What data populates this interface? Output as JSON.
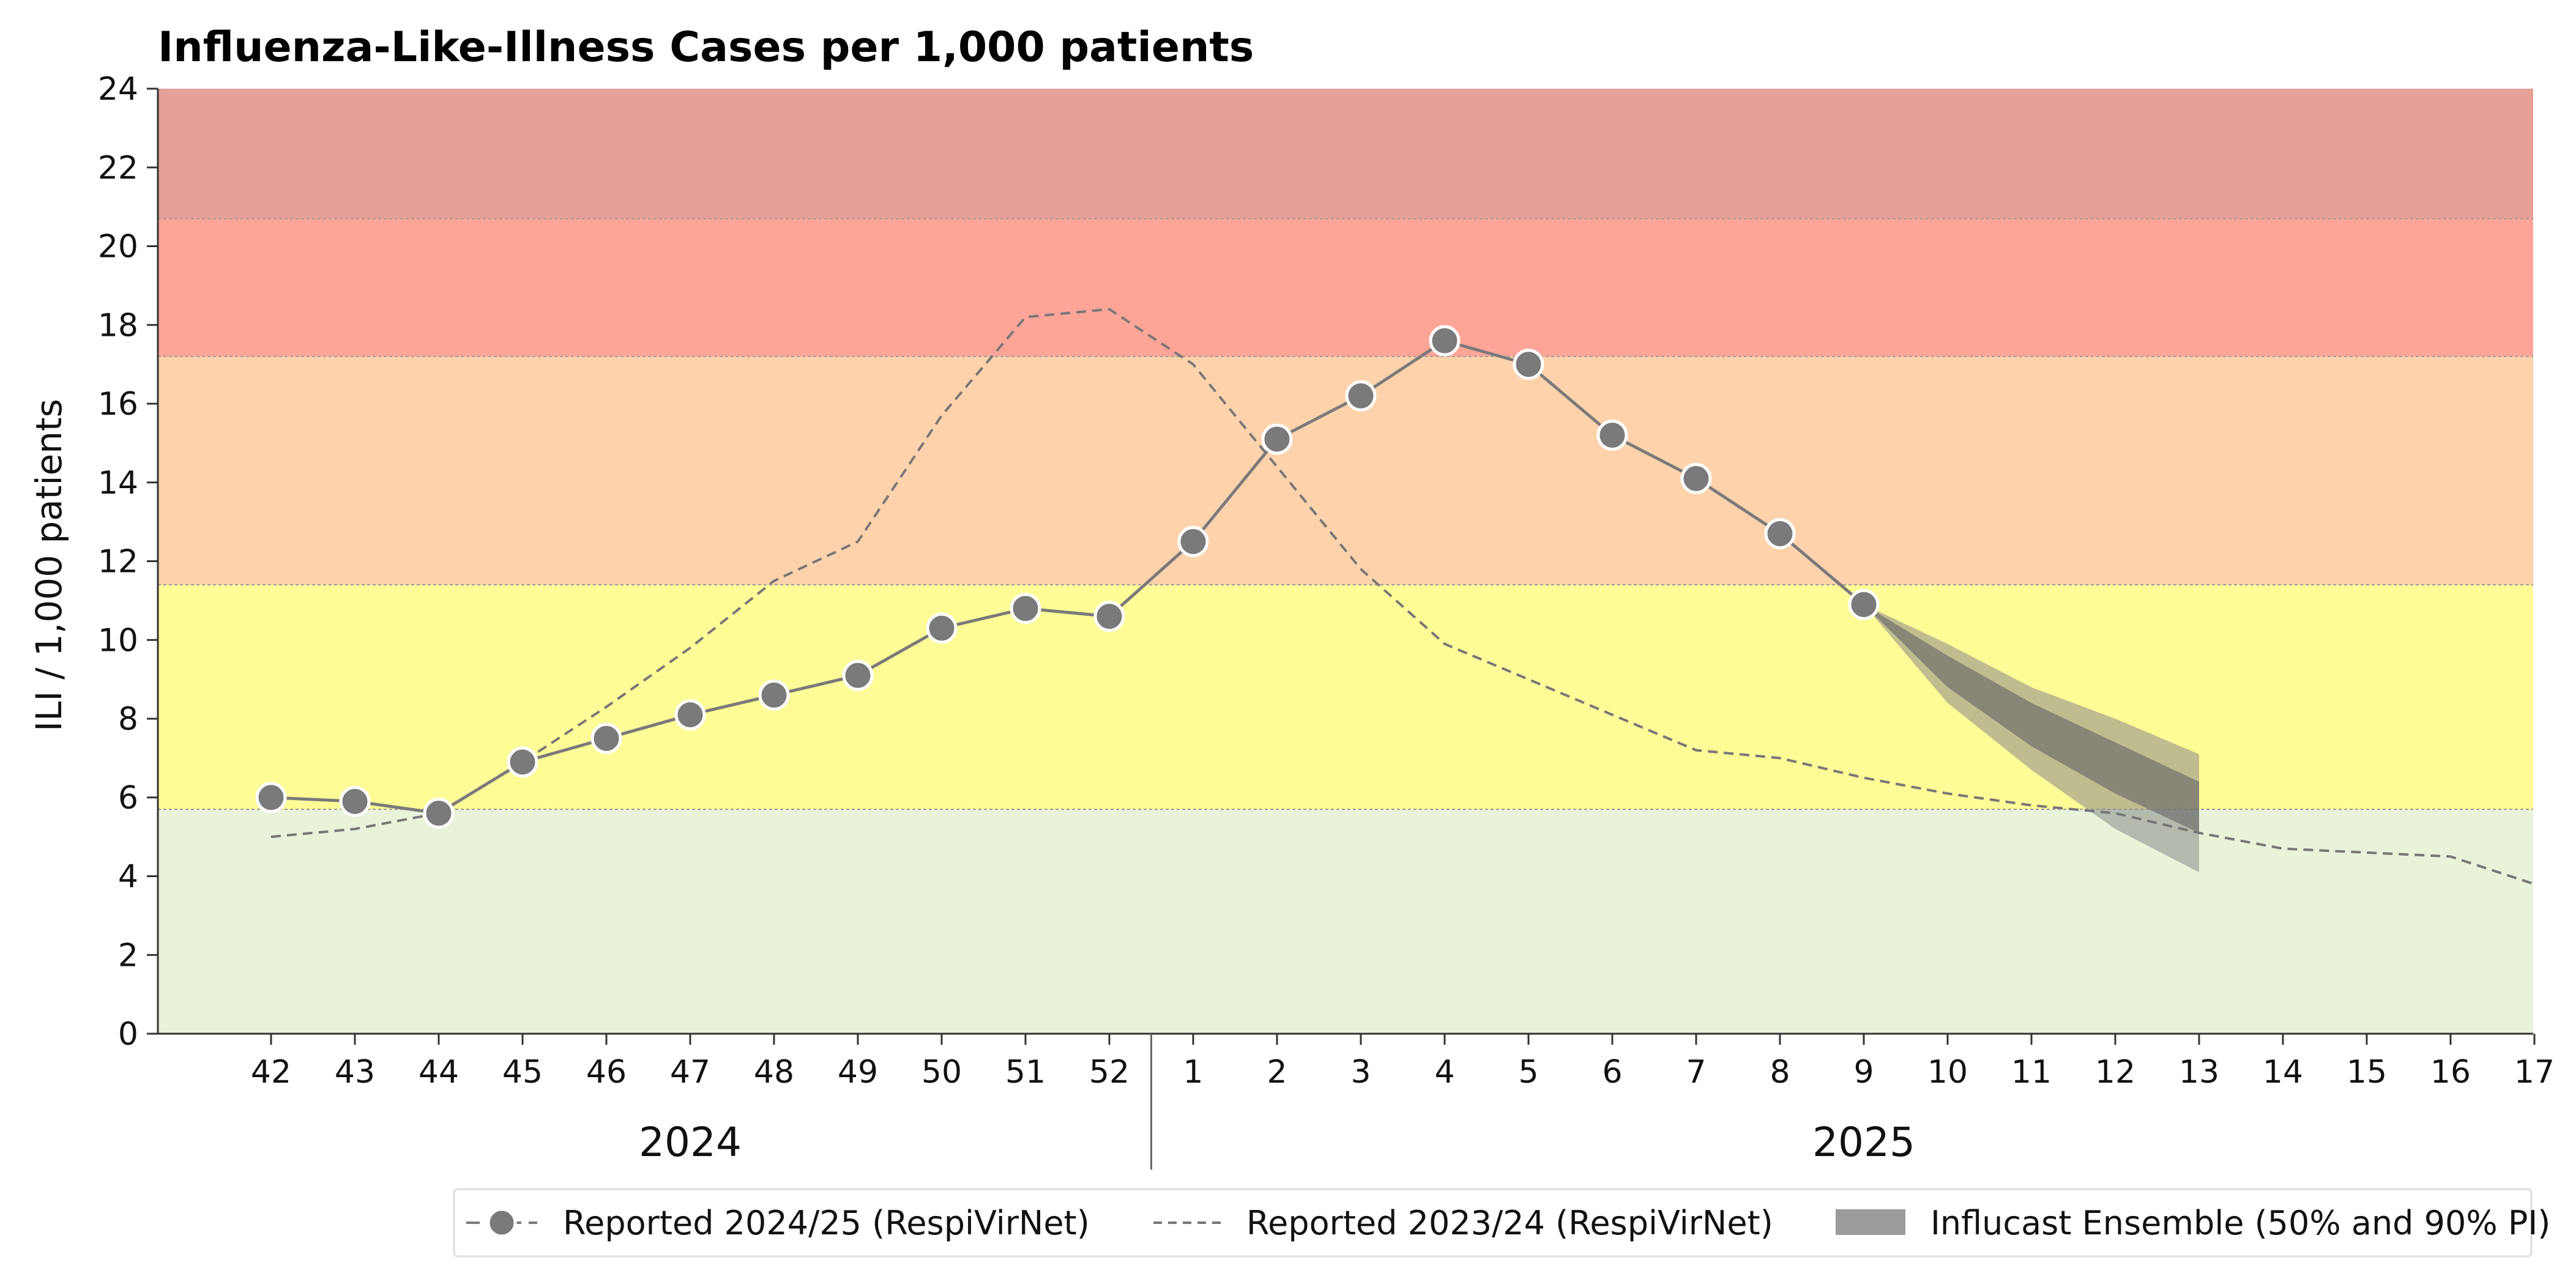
{
  "chart_data": {
    "type": "line",
    "title": "Influenza-Like-Illness Cases per 1,000 patients",
    "ylabel": "ILI / 1,000 patients",
    "xlabel": "",
    "ylim": [
      0,
      24
    ],
    "yticks": [
      0,
      2,
      4,
      6,
      8,
      10,
      12,
      14,
      16,
      18,
      20,
      22,
      24
    ],
    "x_weeks": [
      "42",
      "43",
      "44",
      "45",
      "46",
      "47",
      "48",
      "49",
      "50",
      "51",
      "52",
      "1",
      "2",
      "3",
      "4",
      "5",
      "6",
      "7",
      "8",
      "9",
      "10",
      "11",
      "12",
      "13",
      "14",
      "15",
      "16",
      "17"
    ],
    "years": [
      {
        "label": "2024",
        "first_week": "42",
        "last_week": "52"
      },
      {
        "label": "2025",
        "first_week": "1",
        "last_week": "17"
      }
    ],
    "intensity_bands": [
      {
        "from": 0,
        "to": 5.7,
        "color": "#e8f3da"
      },
      {
        "from": 5.7,
        "to": 11.4,
        "color": "#fffb96"
      },
      {
        "from": 11.4,
        "to": 17.2,
        "color": "#fed3ab"
      },
      {
        "from": 17.2,
        "to": 20.7,
        "color": "#ffa597"
      },
      {
        "from": 20.7,
        "to": 24,
        "color": "#e6a097"
      }
    ],
    "series": [
      {
        "name": "Reported 2024/25 (RespiVirNet)",
        "style": "solid-markers",
        "color": "#7a7a7a",
        "x": [
          "42",
          "43",
          "44",
          "45",
          "46",
          "47",
          "48",
          "49",
          "50",
          "51",
          "52",
          "1",
          "2",
          "3",
          "4",
          "5",
          "6",
          "7",
          "8",
          "9"
        ],
        "values": [
          6.0,
          5.9,
          5.6,
          6.9,
          7.5,
          8.1,
          8.6,
          9.1,
          10.3,
          10.8,
          10.6,
          12.5,
          15.1,
          16.2,
          17.6,
          17.0,
          15.2,
          14.1,
          12.7,
          10.9
        ]
      },
      {
        "name": "Reported 2023/24 (RespiVirNet)",
        "style": "dashed",
        "color": "#777777",
        "x": [
          "42",
          "43",
          "44",
          "45",
          "46",
          "47",
          "48",
          "49",
          "50",
          "51",
          "52",
          "1",
          "2",
          "3",
          "4",
          "5",
          "6",
          "7",
          "8",
          "9",
          "10",
          "11",
          "12",
          "13",
          "14",
          "15",
          "16",
          "17"
        ],
        "values": [
          5.0,
          5.2,
          5.6,
          6.9,
          8.3,
          9.8,
          11.5,
          12.5,
          15.7,
          18.2,
          18.4,
          17.0,
          14.4,
          11.8,
          9.9,
          9.0,
          8.1,
          7.2,
          7.0,
          6.5,
          6.1,
          5.8,
          5.6,
          5.1,
          4.7,
          4.6,
          4.5,
          3.8
        ]
      }
    ],
    "forecast": {
      "name": "Influcast Ensemble (50% and 90% PI)",
      "x": [
        "9",
        "10",
        "11",
        "12",
        "13"
      ],
      "median": [
        10.9,
        9.2,
        7.9,
        6.8,
        5.7
      ],
      "pi50_low": [
        10.9,
        8.8,
        7.3,
        6.1,
        5.1
      ],
      "pi50_high": [
        10.9,
        9.6,
        8.4,
        7.4,
        6.4
      ],
      "pi90_low": [
        10.9,
        8.4,
        6.7,
        5.2,
        4.1
      ],
      "pi90_high": [
        10.9,
        9.9,
        8.8,
        8.0,
        7.1
      ],
      "color_pi90": "#8a8a8a",
      "color_pi50": "#6a6a6a"
    },
    "legend": {
      "placement": "bottom",
      "entries": [
        "Reported 2024/25 (RespiVirNet)",
        "Reported 2023/24 (RespiVirNet)",
        "Influcast Ensemble (50% and 90% PI)"
      ]
    },
    "grid": false
  }
}
